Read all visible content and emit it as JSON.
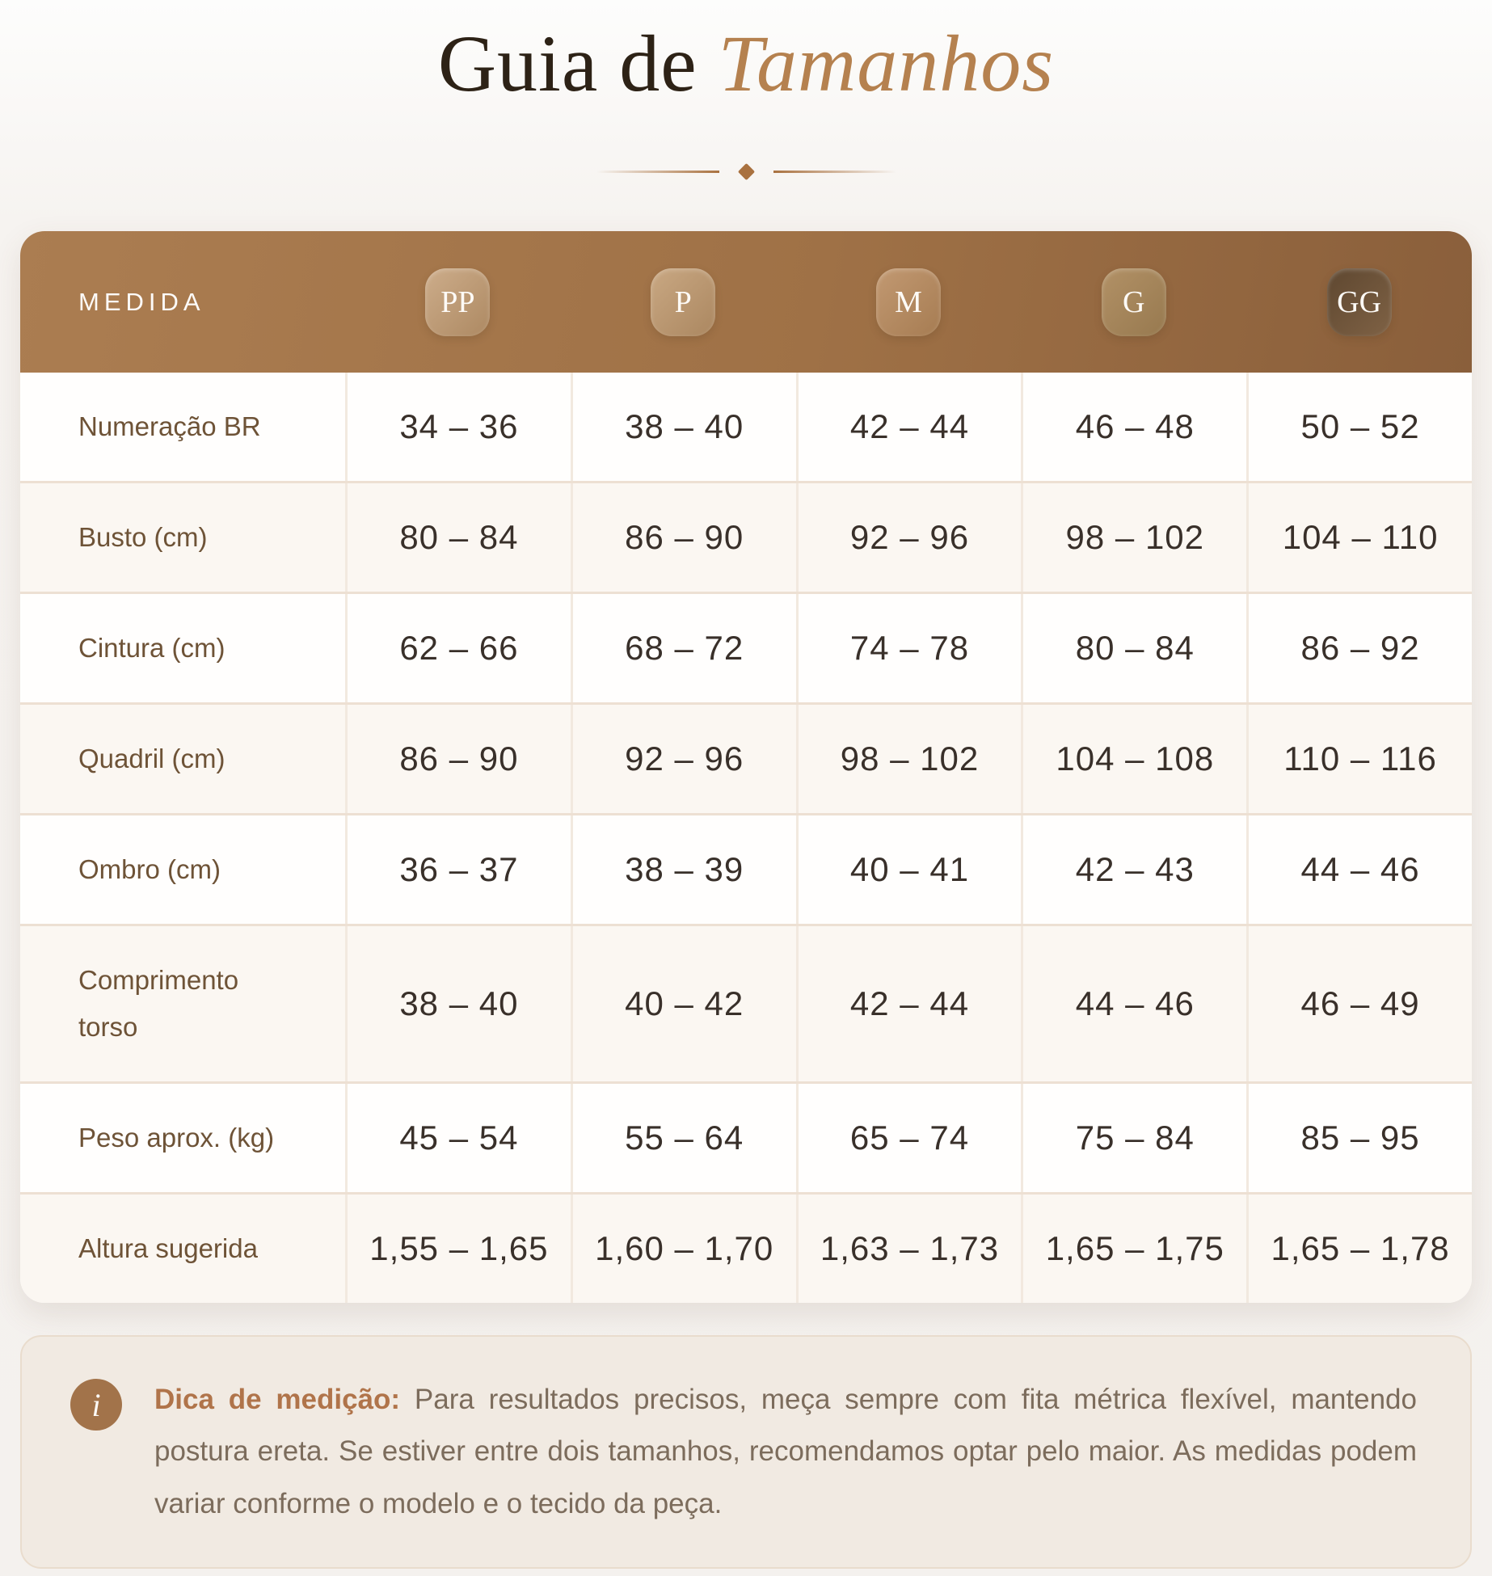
{
  "title": {
    "regular": "Guia de",
    "accent": "Tamanhos"
  },
  "table": {
    "header_label": "MEDIDA",
    "sizes": [
      {
        "label": "PP",
        "color_start": "#cdad8b",
        "color_end": "#ad8962"
      },
      {
        "label": "P",
        "color_start": "#c9a883",
        "color_end": "#ab8760"
      },
      {
        "label": "M",
        "color_start": "#c29972",
        "color_end": "#a67c52"
      },
      {
        "label": "G",
        "color_start": "#b29166",
        "color_end": "#97794f"
      },
      {
        "label": "GG",
        "color_start": "#5e4730",
        "color_end": "#7f6245"
      }
    ],
    "rows": [
      {
        "label": "Numeração BR",
        "values": [
          "34 – 36",
          "38 – 40",
          "42 – 44",
          "46 – 48",
          "50 – 52"
        ]
      },
      {
        "label": "Busto (cm)",
        "values": [
          "80 – 84",
          "86 – 90",
          "92 – 96",
          "98 – 102",
          "104 – 110"
        ]
      },
      {
        "label": "Cintura (cm)",
        "values": [
          "62 – 66",
          "68 – 72",
          "74 – 78",
          "80 – 84",
          "86 – 92"
        ]
      },
      {
        "label": "Quadril (cm)",
        "values": [
          "86 – 90",
          "92 – 96",
          "98 – 102",
          "104 – 108",
          "110 – 116"
        ]
      },
      {
        "label": "Ombro (cm)",
        "values": [
          "36 – 37",
          "38 – 39",
          "40 – 41",
          "42 – 43",
          "44 – 46"
        ]
      },
      {
        "label": "Comprimento torso",
        "values": [
          "38 – 40",
          "40 – 42",
          "42 – 44",
          "44 – 46",
          "46 – 49"
        ]
      },
      {
        "label": "Peso aprox. (kg)",
        "values": [
          "45 – 54",
          "55 – 64",
          "65 – 74",
          "75 – 84",
          "85 – 95"
        ]
      },
      {
        "label": "Altura sugerida",
        "values": [
          "1,55 – 1,65",
          "1,60 – 1,70",
          "1,63 – 1,73",
          "1,65 – 1,75",
          "1,65 – 1,78"
        ]
      }
    ]
  },
  "tip": {
    "icon": "i",
    "title": "Dica de medição:",
    "text": "Para resultados precisos, meça sempre com fita métrica flexível, mantendo postura ereta. Se estiver entre dois tamanhos, recomendamos optar pelo maior. As medidas podem variar conforme o modelo e o tecido da peça."
  },
  "colors": {
    "title_dark": "#2d2216",
    "title_accent": "#b5814f",
    "divider": "#a9713f",
    "header_gradient_start": "#ab7d51",
    "header_gradient_end": "#8a5f3b",
    "row_label": "#6e5337",
    "row_value": "#39302a",
    "row_alt_bg": "#fbf7f2",
    "row_divider": "#ede0d3",
    "tip_bg": "#f1eae2",
    "tip_icon_bg": "#a2734a",
    "tip_title": "#b0744a",
    "tip_text": "#7c6c5c",
    "page_bg": "#f4f1ee"
  }
}
